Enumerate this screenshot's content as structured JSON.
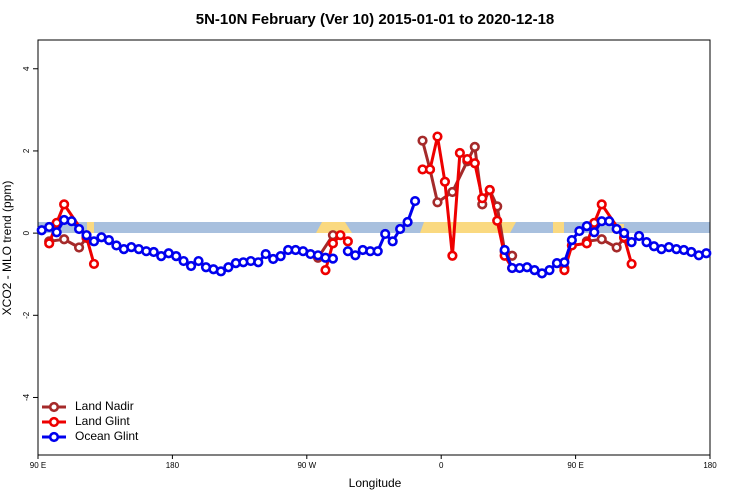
{
  "chart_data": {
    "type": "line",
    "title": "5N-10N February (Ver 10)   2015-01-01 to 2020-12-18",
    "x_label": "Longitude",
    "y_label": "XCO2 - MLO trend (ppm)",
    "xlim": [
      90,
      540
    ],
    "xticks": [
      {
        "value": 90,
        "label": "90 E"
      },
      {
        "value": 180,
        "label": "180"
      },
      {
        "value": 270,
        "label": "90 W"
      },
      {
        "value": 360,
        "label": "0"
      },
      {
        "value": 450,
        "label": "90 E"
      },
      {
        "value": 540,
        "label": "180"
      }
    ],
    "ylim": [
      -5.4,
      4.7
    ],
    "yticks": [
      -4,
      -2,
      0,
      2,
      4
    ],
    "legend": "bottom-left",
    "series": [
      {
        "name": "Land Nadir",
        "color": "#a52a2a",
        "x": [
          97.5,
          107.5,
          117.5,
          122.5,
          127.5,
          277.5,
          287.5,
          292.5,
          347.5,
          352.5,
          357.5,
          367.5,
          377.5,
          382.5,
          387.5,
          392.5,
          397.5,
          402.5,
          407.5,
          412.5,
          442.5,
          447.5,
          457.5,
          467.5,
          477.5,
          482.5
        ],
        "values": [
          -0.2,
          -0.15,
          -0.35,
          -0.12,
          null,
          -0.6,
          -0.05,
          null,
          2.25,
          1.55,
          0.75,
          1.0,
          1.75,
          2.1,
          0.7,
          1.05,
          0.65,
          -0.45,
          -0.55,
          null,
          -0.85,
          null,
          -0.2,
          -0.15,
          -0.35,
          -0.12
        ]
      },
      {
        "name": "Land Glint",
        "color": "#ee0000",
        "x": [
          97.5,
          102.5,
          107.5,
          122.5,
          127.5,
          132.5,
          282.5,
          287.5,
          292.5,
          297.5,
          302.5,
          347.5,
          352.5,
          357.5,
          362.5,
          367.5,
          372.5,
          377.5,
          382.5,
          387.5,
          392.5,
          397.5,
          402.5,
          407.5,
          412.5,
          442.5,
          447.5,
          457.5,
          462.5,
          467.5,
          482.5,
          487.5
        ],
        "values": [
          -0.25,
          0.25,
          0.7,
          -0.1,
          -0.75,
          null,
          -0.9,
          -0.25,
          -0.05,
          -0.2,
          null,
          1.55,
          1.55,
          2.35,
          1.25,
          -0.55,
          1.95,
          1.8,
          1.7,
          0.85,
          1.05,
          0.3,
          -0.55,
          -0.85,
          null,
          -0.9,
          -0.3,
          -0.25,
          0.25,
          0.7,
          -0.1,
          -0.75
        ]
      },
      {
        "name": "Ocean Glint",
        "color": "#0000ee",
        "x": [
          92.5,
          97.5,
          102.5,
          107.5,
          112.5,
          117.5,
          122.5,
          127.5,
          132.5,
          137.5,
          142.5,
          147.5,
          152.5,
          157.5,
          162.5,
          167.5,
          172.5,
          177.5,
          182.5,
          187.5,
          192.5,
          197.5,
          202.5,
          207.5,
          212.5,
          217.5,
          222.5,
          227.5,
          232.5,
          237.5,
          242.5,
          247.5,
          252.5,
          257.5,
          262.5,
          267.5,
          272.5,
          277.5,
          282.5,
          287.5,
          292.5,
          297.5,
          302.5,
          307.5,
          312.5,
          317.5,
          322.5,
          327.5,
          332.5,
          337.5,
          342.5,
          347.5,
          402.5,
          407.5,
          412.5,
          417.5,
          422.5,
          427.5,
          432.5,
          437.5,
          442.5,
          447.5,
          452.5,
          457.5,
          462.5,
          467.5,
          472.5,
          477.5,
          482.5,
          487.5,
          492.5,
          497.5,
          502.5,
          507.5,
          512.5,
          517.5,
          522.5,
          527.5,
          532.5,
          537.5
        ],
        "values": [
          0.07,
          0.15,
          0.02,
          0.32,
          0.29,
          0.1,
          -0.05,
          -0.2,
          -0.1,
          -0.17,
          -0.3,
          -0.39,
          -0.34,
          -0.39,
          -0.44,
          -0.46,
          -0.56,
          -0.49,
          -0.56,
          -0.68,
          -0.8,
          -0.68,
          -0.83,
          -0.88,
          -0.93,
          -0.83,
          -0.73,
          -0.71,
          -0.68,
          -0.71,
          -0.51,
          -0.63,
          -0.56,
          -0.41,
          -0.41,
          -0.44,
          -0.51,
          -0.54,
          -0.6,
          -0.62,
          null,
          -0.44,
          -0.54,
          -0.41,
          -0.44,
          -0.44,
          -0.02,
          -0.2,
          0.1,
          0.27,
          0.78,
          null,
          -0.41,
          -0.85,
          -0.85,
          -0.83,
          -0.9,
          -0.98,
          -0.9,
          -0.73,
          -0.71,
          -0.17,
          0.05,
          0.17,
          0.02,
          0.29,
          0.29,
          0.1,
          0,
          -0.22,
          -0.07,
          -0.22,
          -0.32,
          -0.39,
          -0.34,
          -0.39,
          -0.41,
          -0.46,
          -0.54,
          -0.49
        ]
      }
    ]
  }
}
